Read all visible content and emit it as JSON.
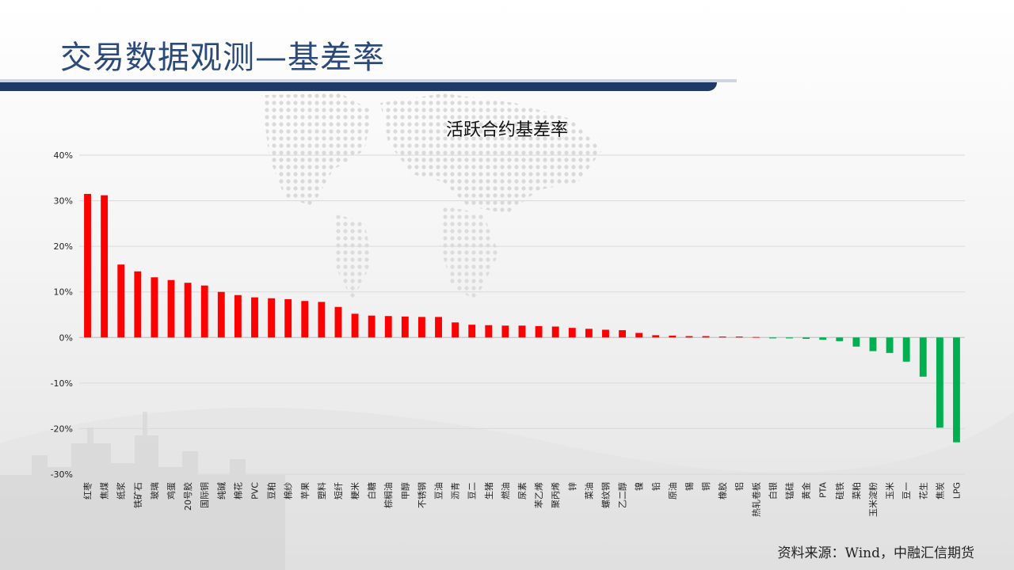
{
  "slide": {
    "title": "交易数据观测—基差率",
    "source": "资料来源：Wind，中融汇信期货"
  },
  "chart_data": {
    "type": "bar",
    "title": "活跃合约基差率",
    "xlabel": "",
    "ylabel": "",
    "ylim": [
      -30,
      40
    ],
    "yticks": [
      -30,
      -20,
      -10,
      0,
      10,
      20,
      30,
      40
    ],
    "ytick_labels": [
      "-30%",
      "-20%",
      "-10%",
      "0%",
      "10%",
      "20%",
      "30%",
      "40%"
    ],
    "grid": true,
    "legend": "none",
    "colors": {
      "positive": "#ff0000",
      "negative": "#00b050"
    },
    "categories": [
      "红枣",
      "焦煤",
      "纸浆",
      "铁矿石",
      "玻璃",
      "鸡蛋",
      "20号胶",
      "国际铜",
      "纯碱",
      "棉花",
      "PVC",
      "豆粕",
      "棉纱",
      "苹果",
      "塑料",
      "短纤",
      "粳米",
      "白糖",
      "棕榈油",
      "甲醇",
      "不锈钢",
      "豆油",
      "沥青",
      "豆二",
      "生猪",
      "燃油",
      "尿素",
      "苯乙烯",
      "聚丙烯",
      "锌",
      "菜油",
      "螺纹钢",
      "乙二醇",
      "镍",
      "铅",
      "原油",
      "锡",
      "铜",
      "橡胶",
      "铝",
      "热轧卷板",
      "白银",
      "锰硅",
      "黄金",
      "PTA",
      "硅铁",
      "菜粕",
      "玉米淀粉",
      "玉米",
      "豆一",
      "花生",
      "焦炭",
      "LPG"
    ],
    "values": [
      31.5,
      31.2,
      16.0,
      14.5,
      13.2,
      12.6,
      12.0,
      11.4,
      10.0,
      9.3,
      8.8,
      8.6,
      8.4,
      8.0,
      7.8,
      6.7,
      5.2,
      4.8,
      4.7,
      4.6,
      4.5,
      4.5,
      3.3,
      2.8,
      2.7,
      2.6,
      2.6,
      2.5,
      2.4,
      2.1,
      1.9,
      1.7,
      1.6,
      1.0,
      0.5,
      0.4,
      0.3,
      0.3,
      0.2,
      0.2,
      0.1,
      -0.2,
      -0.2,
      -0.3,
      -0.5,
      -0.8,
      -2.0,
      -3.0,
      -3.4,
      -5.3,
      -8.6,
      -19.8,
      -23.0
    ]
  }
}
